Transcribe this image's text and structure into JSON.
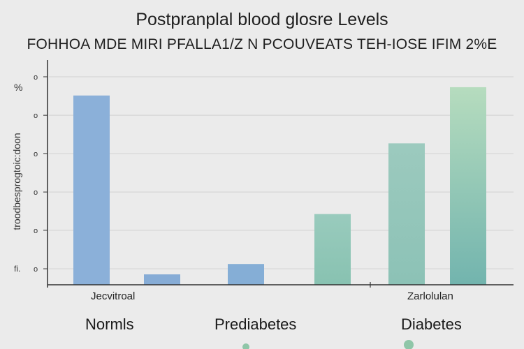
{
  "chart_data": {
    "type": "bar",
    "title": "Postpranplal blood glosre Levels",
    "subtitle": "FOHHOA MDE MIRI PFALLA1/Z N PCOUVEATS TEH-IOSE IFIM 2%E",
    "ylabel": "troodbesprogtoic:doon",
    "yunit": "%",
    "ybottom_label": "fi.",
    "ylim": [
      0,
      100
    ],
    "yticks": [
      {
        "value": 7.7,
        "label": "o"
      },
      {
        "value": 26.2,
        "label": "o"
      },
      {
        "value": 44.6,
        "label": "o"
      },
      {
        "value": 63.1,
        "label": "o"
      },
      {
        "value": 81.5,
        "label": "o"
      },
      {
        "value": 100,
        "label": "o"
      }
    ],
    "grid": true,
    "bars": [
      {
        "group": "Normls",
        "value": 91,
        "color": "#8bb0d9"
      },
      {
        "group": "Normls",
        "value": 5,
        "color": "#86acd6"
      },
      {
        "group": "Prediabetes",
        "value": 10,
        "color": "#85aed6"
      },
      {
        "group": "Prediabetes",
        "value": 34,
        "color": "#93c8b8"
      },
      {
        "group": "Diabetes",
        "value": 68,
        "color": "#98c9bd"
      },
      {
        "group": "Diabetes",
        "value": 95,
        "color": "#a6d4b9"
      }
    ],
    "categories": [
      "Normls",
      "Prediabetes",
      "Diabetes"
    ],
    "sublabels": [
      "Jecvitroal",
      "Zarlolulan"
    ]
  }
}
